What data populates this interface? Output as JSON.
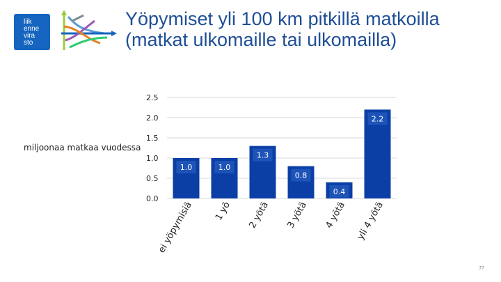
{
  "logo": {
    "lines": [
      "liik",
      "enne",
      "vira",
      "sto"
    ],
    "bg_color": "#1565c0"
  },
  "title": {
    "line1": "Yöpymiset yli 100 km pitkillä matkoilla",
    "line2": "(matkat ulkomaille tai ulkomailla)"
  },
  "page_number": "77",
  "colors": {
    "bar": "#0b3fa6",
    "label_bg": "#1e53b8",
    "title": "#1f4e96"
  },
  "chart_data": {
    "type": "bar",
    "categories": [
      "ei yöpymisiä",
      "1 yö",
      "2 yötä",
      "3 yötä",
      "4 yötä",
      "yli 4 yötä"
    ],
    "values": [
      1.0,
      1.0,
      1.3,
      0.8,
      0.4,
      2.2
    ],
    "data_labels": [
      "1.0",
      "1.0",
      "1.3",
      "0.8",
      "0.4",
      "2.2"
    ],
    "ylabel": "miljoonaa matkaa vuodessa",
    "ylim": [
      0,
      2.5
    ],
    "yticks": [
      "0.0",
      "0.5",
      "1.0",
      "1.5",
      "2.0",
      "2.5"
    ],
    "grid": true
  }
}
